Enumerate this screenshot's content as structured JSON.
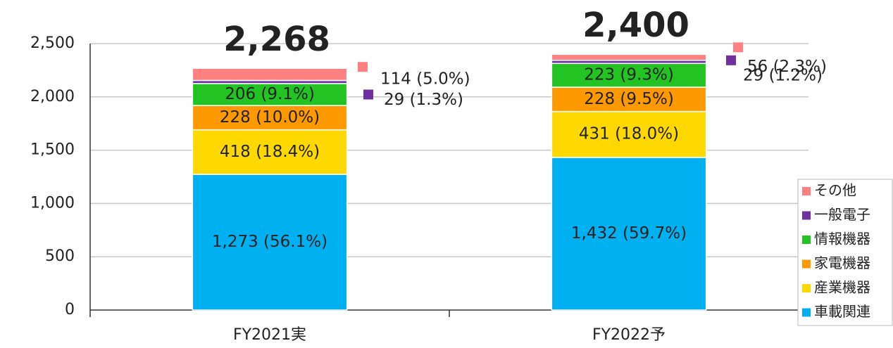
{
  "chart_data": {
    "type": "stacked_bar",
    "categories": [
      "FY2021実",
      "FY2022予"
    ],
    "series": [
      {
        "name": "車載関連",
        "color": "#00b0f0",
        "values": [
          1273,
          1432
        ],
        "value_labels": [
          "1,273 (56.1%)",
          "1,432 (59.7%)"
        ]
      },
      {
        "name": "産業機器",
        "color": "#ffd800",
        "values": [
          418,
          431
        ],
        "value_labels": [
          "418 (18.4%)",
          "431 (18.0%)"
        ]
      },
      {
        "name": "家電機器",
        "color": "#ff9900",
        "values": [
          228,
          228
        ],
        "value_labels": [
          "228 (10.0%)",
          "228 (9.5%)"
        ]
      },
      {
        "name": "情報機器",
        "color": "#22c322",
        "values": [
          206,
          223
        ],
        "value_labels": [
          "206 (9.1%)",
          "223 (9.3%)"
        ]
      },
      {
        "name": "一般電子",
        "color": "#7030a0",
        "values": [
          29,
          29
        ],
        "value_labels": [
          "29 (1.3%)",
          "29 (1.2%)"
        ]
      },
      {
        "name": "その他",
        "color": "#ff8080",
        "values": [
          114,
          56
        ],
        "value_labels": [
          "114 (5.0%)",
          "56 (2.3%)"
        ]
      }
    ],
    "totals": [
      2268,
      2400
    ],
    "total_labels": [
      "2,268",
      "2,400"
    ],
    "ylim": [
      0,
      2500
    ],
    "yticks": [
      0,
      500,
      {
        "value": 1000,
        "label": "1,000"
      },
      {
        "value": 1500,
        "label": "1,500"
      },
      {
        "value": 2000,
        "label": "2,000"
      },
      {
        "value": 2500,
        "label": "2,500"
      }
    ],
    "grid": true,
    "legend": "right"
  }
}
